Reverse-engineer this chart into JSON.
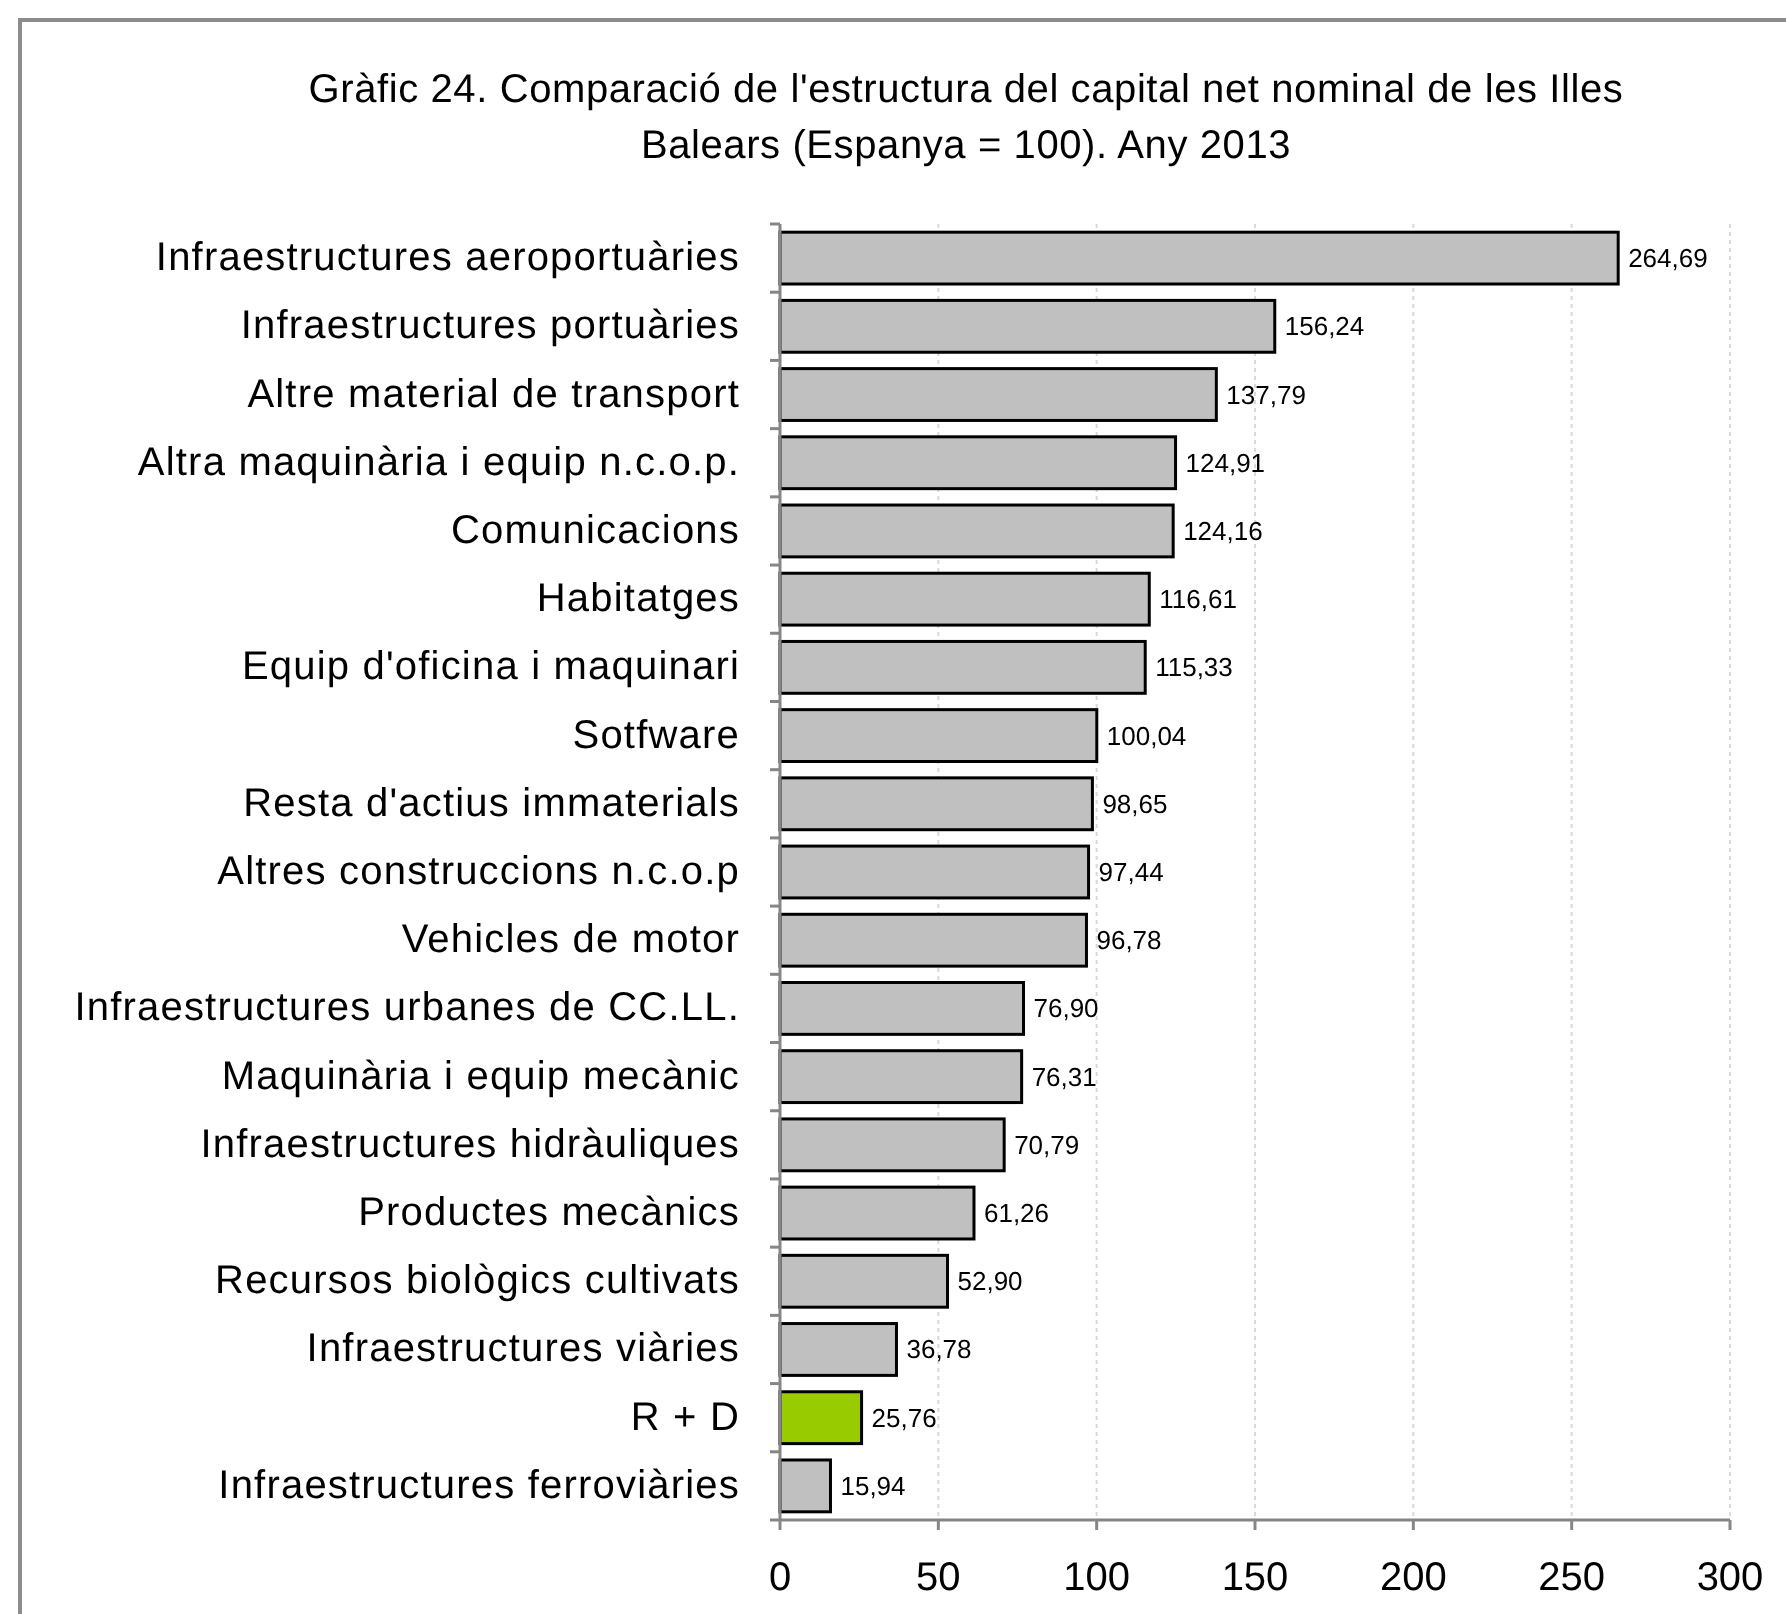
{
  "chart_data": {
    "type": "bar",
    "orientation": "horizontal",
    "title": "Gràfic 24. Comparació de l'estructura del capital net nominal de les Illes Balears (Espanya = 100). Any 2013",
    "categories": [
      "Infraestructures aeroportuàries",
      "Infraestructures portuàries",
      "Altre material de transport",
      "Altra maquinària i equip n.c.o.p.",
      "Comunicacions",
      "Habitatges",
      "Equip d'oficina i maquinari",
      "Sotfware",
      "Resta d'actius immaterials",
      "Altres construccions n.c.o.p",
      "Vehicles de motor",
      "Infraestructures urbanes de CC.LL.",
      "Maquinària i equip mecànic",
      "Infraestructures hidràuliques",
      "Productes mecànics",
      "Recursos biològics cultivats",
      "Infraestructures viàries",
      "R + D",
      "Infraestructures ferroviàries"
    ],
    "values": [
      264.69,
      156.24,
      137.79,
      124.91,
      124.16,
      116.61,
      115.33,
      100.04,
      98.65,
      97.44,
      96.78,
      76.9,
      76.31,
      70.79,
      61.26,
      52.9,
      36.78,
      25.76,
      15.94
    ],
    "value_labels": [
      "264,69",
      "156,24",
      "137,79",
      "124,91",
      "124,16",
      "116,61",
      "115,33",
      "100,04",
      "98,65",
      "97,44",
      "96,78",
      "76,90",
      "76,31",
      "70,79",
      "61,26",
      "52,90",
      "36,78",
      "25,76",
      "15,94"
    ],
    "colors": [
      "#c0c0c0",
      "#c0c0c0",
      "#c0c0c0",
      "#c0c0c0",
      "#c0c0c0",
      "#c0c0c0",
      "#c0c0c0",
      "#c0c0c0",
      "#c0c0c0",
      "#c0c0c0",
      "#c0c0c0",
      "#c0c0c0",
      "#c0c0c0",
      "#c0c0c0",
      "#c0c0c0",
      "#c0c0c0",
      "#c0c0c0",
      "#99cc00",
      "#c0c0c0"
    ],
    "xlim": [
      0,
      300
    ],
    "xticks": [
      0,
      50,
      100,
      150,
      200,
      250,
      300
    ],
    "grid": "x"
  }
}
